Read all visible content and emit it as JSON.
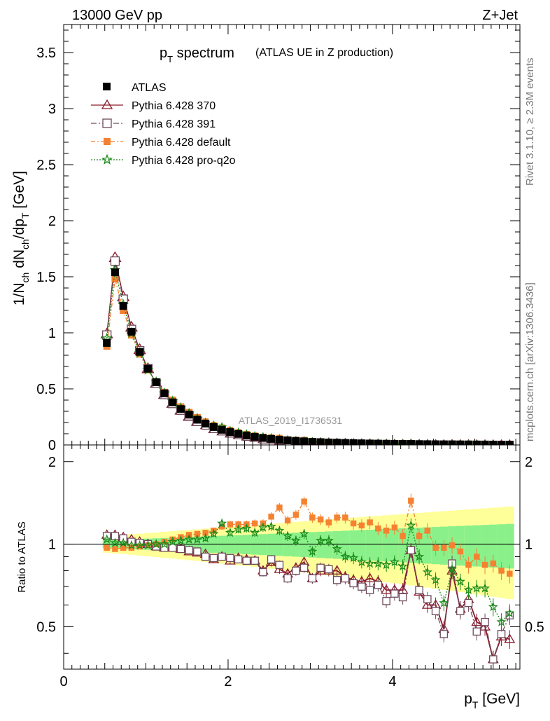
{
  "header": {
    "left": "13000 GeV pp",
    "right": "Z+Jet"
  },
  "title": {
    "main_pre": "p",
    "main_sub": "T",
    "main_post": " spectrum",
    "paren": "(ATLAS UE in Z production)"
  },
  "side_labels": {
    "top": "Rivet 3.1.10, ≥ 2.3M events",
    "bottom": "mcplots.cern.ch [arXiv:1306.3436]"
  },
  "watermark": "ATLAS_2019_I1736531",
  "axes": {
    "ylabel_main": "1/N_ch dN_ch/dp_T [GeV]",
    "ylabel_ratio": "Ratio to ATLAS",
    "xlabel": "p_T [GeV]",
    "main_ticks": [
      "0",
      "0.5",
      "1",
      "1.5",
      "2",
      "2.5",
      "3",
      "3.5"
    ],
    "ratio_ticks": [
      "0.5",
      "1",
      "2"
    ],
    "x_ticks": [
      "0",
      "2",
      "4"
    ]
  },
  "legend": {
    "atlas": "ATLAS",
    "p370": "Pythia 6.428 370",
    "p391": "Pythia 6.428 391",
    "pdef": "Pythia 6.428 default",
    "pq2o": "Pythia 6.428 pro-q2o"
  },
  "colors": {
    "atlas": "#000000",
    "p370": "#8b1a2b",
    "p391": "#6e4a5c",
    "pdef": "#f58231",
    "pq2o": "#1a8a1a",
    "band_inner": "#8af08a",
    "band_outer": "#ffff99"
  },
  "chart_data": {
    "type": "line",
    "x_unit": "GeV",
    "xlim": [
      0,
      5.55
    ],
    "main_ylim": [
      0,
      3.75
    ],
    "ratio_ylim": [
      0.35,
      2.3
    ],
    "ratio_scale": "log",
    "x": [
      0.525,
      0.625,
      0.725,
      0.825,
      0.925,
      1.025,
      1.125,
      1.225,
      1.325,
      1.425,
      1.525,
      1.625,
      1.725,
      1.825,
      1.925,
      2.025,
      2.125,
      2.225,
      2.325,
      2.425,
      2.525,
      2.625,
      2.725,
      2.825,
      2.925,
      3.025,
      3.125,
      3.225,
      3.325,
      3.425,
      3.525,
      3.625,
      3.725,
      3.825,
      3.925,
      4.025,
      4.125,
      4.225,
      4.325,
      4.425,
      4.525,
      4.625,
      4.725,
      4.825,
      4.925,
      5.025,
      5.125,
      5.225,
      5.325,
      5.425
    ],
    "series": [
      {
        "name": "ATLAS",
        "values": [
          0.91,
          1.54,
          1.24,
          1.01,
          0.83,
          0.68,
          0.56,
          0.46,
          0.38,
          0.32,
          0.27,
          0.225,
          0.19,
          0.16,
          0.135,
          0.115,
          0.098,
          0.084,
          0.072,
          0.062,
          0.054,
          0.047,
          0.041,
          0.036,
          0.032,
          0.028,
          0.025,
          0.022,
          0.02,
          0.018,
          0.016,
          0.0145,
          0.013,
          0.012,
          0.011,
          0.01,
          0.009,
          0.0082,
          0.0075,
          0.0068,
          0.0062,
          0.0057,
          0.0052,
          0.0048,
          0.0044,
          0.004,
          0.0037,
          0.0034,
          0.0031,
          0.0029
        ]
      },
      {
        "name": "Pythia 6.428 370",
        "values": [
          0.99,
          1.67,
          1.32,
          1.05,
          0.85,
          0.68,
          0.55,
          0.45,
          0.37,
          0.31,
          0.255,
          0.21,
          0.175,
          0.14,
          0.12,
          0.1,
          0.087,
          0.074,
          0.063,
          0.05,
          0.046,
          0.038,
          0.032,
          0.03,
          0.028,
          0.021,
          0.02,
          0.018,
          0.016,
          0.014,
          0.0118,
          0.0105,
          0.0097,
          0.0087,
          0.0075,
          0.0068,
          0.0061,
          0.0078,
          0.005,
          0.0041,
          0.0037,
          0.0028,
          0.0042,
          0.0028,
          0.0028,
          0.0021,
          0.0019,
          0.0013,
          0.0014,
          0.0013
        ]
      },
      {
        "name": "Pythia 6.428 391",
        "values": [
          0.98,
          1.64,
          1.3,
          1.03,
          0.84,
          0.68,
          0.55,
          0.45,
          0.37,
          0.31,
          0.26,
          0.21,
          0.172,
          0.142,
          0.121,
          0.103,
          0.087,
          0.073,
          0.063,
          0.049,
          0.048,
          0.04,
          0.031,
          0.029,
          0.026,
          0.021,
          0.021,
          0.018,
          0.015,
          0.0135,
          0.0115,
          0.0101,
          0.0088,
          0.0085,
          0.0068,
          0.0066,
          0.0058,
          0.0078,
          0.0051,
          0.0043,
          0.0035,
          0.0027,
          0.0044,
          0.0027,
          0.0027,
          0.0019,
          0.0019,
          0.0013,
          0.0015,
          0.0016
        ]
      },
      {
        "name": "Pythia 6.428 default",
        "values": [
          0.88,
          1.48,
          1.2,
          0.98,
          0.81,
          0.67,
          0.56,
          0.47,
          0.4,
          0.34,
          0.29,
          0.245,
          0.21,
          0.18,
          0.157,
          0.136,
          0.115,
          0.099,
          0.086,
          0.074,
          0.068,
          0.064,
          0.05,
          0.046,
          0.046,
          0.035,
          0.031,
          0.027,
          0.025,
          0.023,
          0.019,
          0.017,
          0.016,
          0.014,
          0.0123,
          0.0115,
          0.0096,
          0.0118,
          0.0081,
          0.0076,
          0.006,
          0.0055,
          0.0052,
          0.0045,
          0.0037,
          0.0036,
          0.0031,
          0.0029,
          0.0025,
          0.0023
        ]
      },
      {
        "name": "Pythia 6.428 pro-q2o",
        "values": [
          0.95,
          1.56,
          1.25,
          1.0,
          0.82,
          0.67,
          0.56,
          0.46,
          0.39,
          0.33,
          0.28,
          0.235,
          0.2,
          0.175,
          0.16,
          0.126,
          0.111,
          0.096,
          0.079,
          0.071,
          0.063,
          0.053,
          0.044,
          0.037,
          0.035,
          0.026,
          0.026,
          0.023,
          0.019,
          0.016,
          0.0142,
          0.0125,
          0.011,
          0.0102,
          0.0092,
          0.0086,
          0.0075,
          0.0096,
          0.0068,
          0.0054,
          0.0046,
          0.0035,
          0.0042,
          0.0035,
          0.003,
          0.0028,
          0.0026,
          0.002,
          0.0016,
          0.0016
        ]
      }
    ],
    "ratio_series": [
      {
        "name": "Pythia 6.428 370",
        "values": [
          1.08,
          1.08,
          1.06,
          1.04,
          1.02,
          1.0,
          0.98,
          0.97,
          0.97,
          0.96,
          0.94,
          0.93,
          0.92,
          0.88,
          0.9,
          0.87,
          0.89,
          0.88,
          0.87,
          0.8,
          0.86,
          0.81,
          0.78,
          0.82,
          0.86,
          0.75,
          0.8,
          0.8,
          0.8,
          0.76,
          0.74,
          0.73,
          0.75,
          0.73,
          0.68,
          0.68,
          0.68,
          0.95,
          0.67,
          0.6,
          0.6,
          0.49,
          0.8,
          0.58,
          0.63,
          0.52,
          0.5,
          0.38,
          0.46,
          0.45
        ]
      },
      {
        "name": "Pythia 6.428 391",
        "values": [
          1.07,
          1.07,
          1.05,
          1.02,
          1.01,
          1.0,
          0.98,
          0.97,
          0.97,
          0.96,
          0.95,
          0.94,
          0.9,
          0.89,
          0.9,
          0.89,
          0.88,
          0.87,
          0.87,
          0.79,
          0.88,
          0.84,
          0.75,
          0.8,
          0.82,
          0.75,
          0.82,
          0.81,
          0.74,
          0.75,
          0.72,
          0.7,
          0.68,
          0.71,
          0.62,
          0.66,
          0.64,
          0.95,
          0.68,
          0.63,
          0.57,
          0.47,
          0.85,
          0.57,
          0.61,
          0.48,
          0.52,
          0.38,
          0.47,
          0.55
        ]
      },
      {
        "name": "Pythia 6.428 default",
        "values": [
          0.97,
          0.96,
          0.97,
          0.97,
          0.98,
          0.99,
          1.0,
          1.02,
          1.04,
          1.06,
          1.08,
          1.09,
          1.1,
          1.12,
          1.16,
          1.18,
          1.18,
          1.18,
          1.19,
          1.19,
          1.26,
          1.36,
          1.22,
          1.28,
          1.43,
          1.25,
          1.23,
          1.2,
          1.25,
          1.25,
          1.19,
          1.17,
          1.2,
          1.14,
          1.12,
          1.15,
          1.07,
          1.44,
          1.07,
          1.12,
          0.97,
          0.97,
          0.99,
          0.94,
          0.84,
          0.9,
          0.84,
          0.85,
          0.8,
          0.78
        ]
      },
      {
        "name": "Pythia 6.428 pro-q2o",
        "values": [
          1.04,
          1.01,
          1.01,
          0.99,
          0.99,
          0.99,
          1.0,
          1.0,
          1.02,
          1.03,
          1.04,
          1.04,
          1.05,
          1.09,
          1.19,
          1.1,
          1.13,
          1.14,
          1.1,
          1.15,
          1.16,
          1.12,
          1.07,
          1.03,
          1.09,
          0.94,
          1.03,
          1.03,
          0.96,
          0.9,
          0.89,
          0.86,
          0.85,
          0.85,
          0.84,
          0.86,
          0.83,
          1.17,
          0.9,
          0.79,
          0.74,
          0.61,
          0.81,
          0.73,
          0.68,
          0.69,
          0.69,
          0.59,
          0.52,
          0.56
        ]
      }
    ]
  }
}
